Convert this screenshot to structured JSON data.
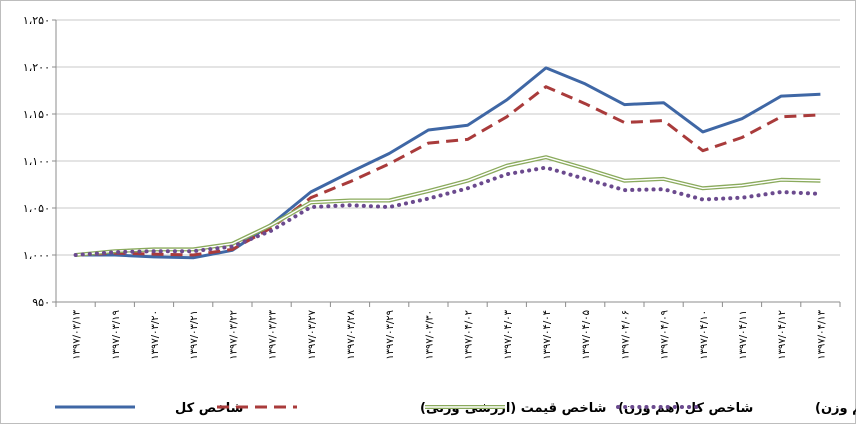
{
  "chart_data": {
    "type": "line",
    "title": "",
    "xlabel": "",
    "ylabel": "",
    "ylim": [
      950,
      1250
    ],
    "y_ticks": [
      "۹۵۰",
      "۱،۰۰۰",
      "۱،۰۵۰",
      "۱،۱۰۰",
      "۱،۱۵۰",
      "۱،۲۰۰",
      "۱،۲۵۰"
    ],
    "y_tick_values": [
      950,
      1000,
      1050,
      1100,
      1150,
      1200,
      1250
    ],
    "grid": true,
    "legend_position": "bottom",
    "categories": [
      "۱۳۹۷/۰۳/۱۳",
      "۱۳۹۷/۰۳/۱۹",
      "۱۳۹۷/۰۳/۲۰",
      "۱۳۹۷/۰۳/۲۱",
      "۱۳۹۷/۰۳/۲۲",
      "۱۳۹۷/۰۳/۲۳",
      "۱۳۹۷/۰۳/۲۷",
      "۱۳۹۷/۰۳/۲۸",
      "۱۳۹۷/۰۳/۲۹",
      "۱۳۹۷/۰۳/۳۰",
      "۱۳۹۷/۰۴/۰۲",
      "۱۳۹۷/۰۴/۰۳",
      "۱۳۹۷/۰۴/۰۴",
      "۱۳۹۷/۰۴/۰۵",
      "۱۳۹۷/۰۴/۰۶",
      "۱۳۹۷/۰۴/۰۹",
      "۱۳۹۷/۰۴/۱۰",
      "۱۳۹۷/۰۴/۱۱",
      "۱۳۹۷/۰۴/۱۲",
      "۱۳۹۷/۰۴/۱۳"
    ],
    "series": [
      {
        "name": "شاخص کل",
        "color": "#3f67a5",
        "style": "solid",
        "values": [
          1000,
          1000,
          998,
          997,
          1005,
          1033,
          1067,
          1088,
          1108,
          1133,
          1138,
          1165,
          1199,
          1182,
          1160,
          1162,
          1131,
          1145,
          1169,
          1171
        ]
      },
      {
        "name": "شاخص قیمت (ارزشی-وزنی)",
        "color": "#a93b3b",
        "style": "dashed",
        "values": [
          1000,
          1002,
          1001,
          1000,
          1006,
          1029,
          1061,
          1078,
          1097,
          1119,
          1123,
          1147,
          1179,
          1161,
          1141,
          1143,
          1111,
          1125,
          1147,
          1149
        ]
      },
      {
        "name": "شاخص کل (هم وزن)",
        "color": "#8aaa5c",
        "style": "double",
        "values": [
          1000,
          1004,
          1006,
          1006,
          1012,
          1032,
          1056,
          1058,
          1058,
          1068,
          1079,
          1095,
          1104,
          1092,
          1079,
          1081,
          1071,
          1074,
          1080,
          1079
        ]
      },
      {
        "name": "شاخص قیمت (هم وزن)",
        "color": "#6b4a8e",
        "style": "dotted",
        "values": [
          1000,
          1003,
          1004,
          1004,
          1009,
          1026,
          1051,
          1053,
          1051,
          1060,
          1071,
          1086,
          1093,
          1081,
          1069,
          1070,
          1059,
          1061,
          1067,
          1065
        ]
      }
    ]
  }
}
